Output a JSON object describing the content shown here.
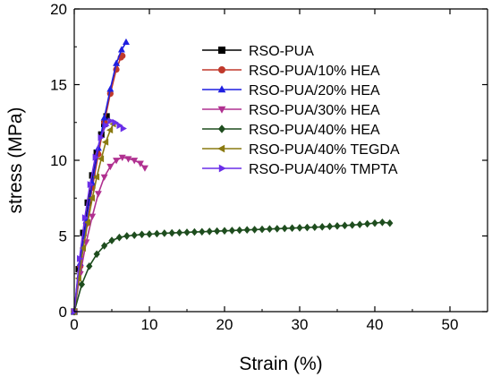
{
  "chart_data": {
    "type": "line",
    "xlabel": "Strain (%)",
    "ylabel": "stress (MPa)",
    "xlim": [
      0,
      55
    ],
    "ylim": [
      0,
      20
    ],
    "xticks": [
      "0",
      "10",
      "20",
      "30",
      "40",
      "50"
    ],
    "yticks": [
      "0",
      "5",
      "10",
      "15",
      "20"
    ],
    "legend_position": "top-right",
    "series": [
      {
        "name": "RSO-PUA",
        "color": "#000000",
        "marker": "square",
        "x": [
          0,
          0.6,
          1.2,
          1.8,
          2.4,
          3.0,
          3.6,
          4.0,
          4.3
        ],
        "y": [
          0,
          2.8,
          5.2,
          7.2,
          9.0,
          10.5,
          11.7,
          12.4,
          12.9
        ]
      },
      {
        "name": "RSO-PUA/10% HEA",
        "color": "#c0392b",
        "marker": "circle",
        "x": [
          0,
          0.8,
          1.6,
          2.4,
          3.2,
          4.0,
          4.8,
          5.6,
          6.2,
          6.4
        ],
        "y": [
          0,
          3.0,
          5.8,
          8.2,
          10.4,
          12.5,
          14.4,
          16.0,
          16.8,
          16.9
        ]
      },
      {
        "name": "RSO-PUA/20% HEA",
        "color": "#1f1fe0",
        "marker": "triangle-up",
        "x": [
          0,
          0.8,
          1.6,
          2.4,
          3.2,
          4.0,
          4.8,
          5.6,
          6.3,
          6.9
        ],
        "y": [
          0,
          3.2,
          6.0,
          8.5,
          10.8,
          12.8,
          14.7,
          16.4,
          17.3,
          17.8
        ]
      },
      {
        "name": "RSO-PUA/30% HEA",
        "color": "#b03090",
        "marker": "triangle-down",
        "x": [
          0,
          0.8,
          1.6,
          2.4,
          3.2,
          4.0,
          4.8,
          5.6,
          6.4,
          7.2,
          8.0,
          8.8,
          9.4
        ],
        "y": [
          0,
          2.5,
          4.6,
          6.3,
          7.8,
          8.9,
          9.6,
          10.0,
          10.2,
          10.1,
          10.0,
          9.8,
          9.5
        ]
      },
      {
        "name": "RSO-PUA/40% HEA",
        "color": "#1e4d1e",
        "marker": "diamond",
        "x": [
          0,
          1,
          2,
          3,
          4,
          5,
          6,
          7,
          8,
          9,
          10,
          11,
          12,
          13,
          14,
          15,
          16,
          17,
          18,
          19,
          20,
          21,
          22,
          23,
          24,
          25,
          26,
          27,
          28,
          29,
          30,
          31,
          32,
          33,
          34,
          35,
          36,
          37,
          38,
          39,
          40,
          41,
          42
        ],
        "y": [
          0,
          1.8,
          3.0,
          3.8,
          4.35,
          4.7,
          4.9,
          5.0,
          5.05,
          5.1,
          5.12,
          5.15,
          5.18,
          5.2,
          5.22,
          5.24,
          5.26,
          5.28,
          5.3,
          5.32,
          5.34,
          5.36,
          5.38,
          5.4,
          5.42,
          5.44,
          5.46,
          5.48,
          5.5,
          5.52,
          5.54,
          5.56,
          5.58,
          5.6,
          5.63,
          5.66,
          5.69,
          5.72,
          5.76,
          5.8,
          5.85,
          5.9,
          5.85
        ]
      },
      {
        "name": "RSO-PUA/40% TEGDA",
        "color": "#8a7a10",
        "marker": "triangle-left",
        "x": [
          0,
          0.6,
          1.2,
          1.8,
          2.4,
          3.0,
          3.6,
          4.2,
          4.8,
          5.2
        ],
        "y": [
          0,
          2.2,
          4.2,
          5.9,
          7.5,
          8.9,
          10.1,
          11.2,
          12.0,
          12.4
        ]
      },
      {
        "name": "RSO-PUA/40% TMPTA",
        "color": "#6a2ee8",
        "marker": "triangle-right",
        "x": [
          0,
          0.7,
          1.4,
          2.1,
          2.8,
          3.5,
          4.2,
          4.8,
          5.4,
          6.0,
          6.5
        ],
        "y": [
          0,
          3.5,
          6.2,
          8.4,
          10.2,
          11.5,
          12.3,
          12.6,
          12.5,
          12.3,
          12.1
        ]
      }
    ]
  }
}
